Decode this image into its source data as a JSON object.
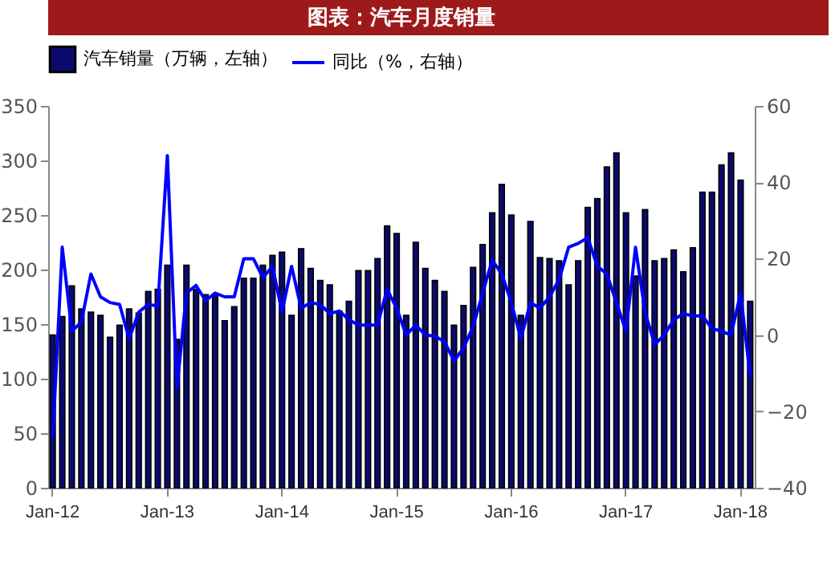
{
  "chart_data": {
    "type": "bar",
    "title": "图表：汽车月度销量",
    "categories": [
      "Jan-12",
      null,
      null,
      null,
      null,
      null,
      null,
      null,
      null,
      null,
      null,
      null,
      "Jan-13",
      null,
      null,
      null,
      null,
      null,
      null,
      null,
      null,
      null,
      null,
      null,
      "Jan-14",
      null,
      null,
      null,
      null,
      null,
      null,
      null,
      null,
      null,
      null,
      null,
      "Jan-15",
      null,
      null,
      null,
      null,
      null,
      null,
      null,
      null,
      null,
      null,
      null,
      "Jan-16",
      null,
      null,
      null,
      null,
      null,
      null,
      null,
      null,
      null,
      null,
      null,
      "Jan-17",
      null,
      null,
      null,
      null,
      null,
      null,
      null,
      null,
      null,
      null,
      null,
      "Jan-18",
      null
    ],
    "series": [
      {
        "name": "汽车销量（万辆，左轴）",
        "color": "#0a0a6e",
        "values": [
          140,
          157,
          185,
          164,
          161,
          158,
          138,
          149,
          164,
          160,
          180,
          182,
          204,
          136,
          204,
          182,
          177,
          177,
          153,
          166,
          192,
          192,
          204,
          213,
          216,
          158,
          219,
          201,
          190,
          186,
          162,
          171,
          199,
          199,
          210,
          240,
          233,
          158,
          225,
          201,
          190,
          180,
          149,
          167,
          202,
          223,
          252,
          278,
          250,
          158,
          244,
          211,
          210,
          208,
          186,
          208,
          257,
          265,
          294,
          307,
          252,
          194,
          255,
          208,
          210,
          218,
          198,
          220,
          271,
          271,
          296,
          307,
          282,
          171
        ]
      },
      {
        "name": "同比（%，右轴）",
        "type": "line",
        "axis": "y2",
        "color": "#0000ff",
        "values": [
          -27,
          23,
          1,
          3.4,
          16,
          10,
          8.5,
          8,
          -1,
          6,
          8,
          7.6,
          47,
          -14,
          11,
          13,
          9,
          11,
          10,
          10,
          20,
          20,
          15,
          18,
          6,
          18,
          7,
          8.5,
          8,
          5.6,
          6.3,
          4,
          2.6,
          2.6,
          2.6,
          12,
          7,
          0,
          2.6,
          0,
          -0.3,
          -1.7,
          -6.8,
          -3.4,
          2.2,
          11,
          19.6,
          16,
          8.5,
          -0.9,
          8.5,
          7,
          10,
          14.5,
          23,
          24,
          25.5,
          18,
          16,
          8.5,
          1,
          23,
          6,
          -2.5,
          0,
          4,
          5.6,
          5,
          5,
          1.7,
          1,
          0,
          11,
          -11
        ]
      }
    ],
    "ylim": [
      0,
      350
    ],
    "yticks": [
      0,
      50,
      100,
      150,
      200,
      250,
      300,
      350
    ],
    "y2lim": [
      -40,
      60
    ],
    "y2ticks": [
      -40,
      -20,
      0,
      20,
      40,
      60
    ],
    "legend": "top",
    "grid": false
  }
}
